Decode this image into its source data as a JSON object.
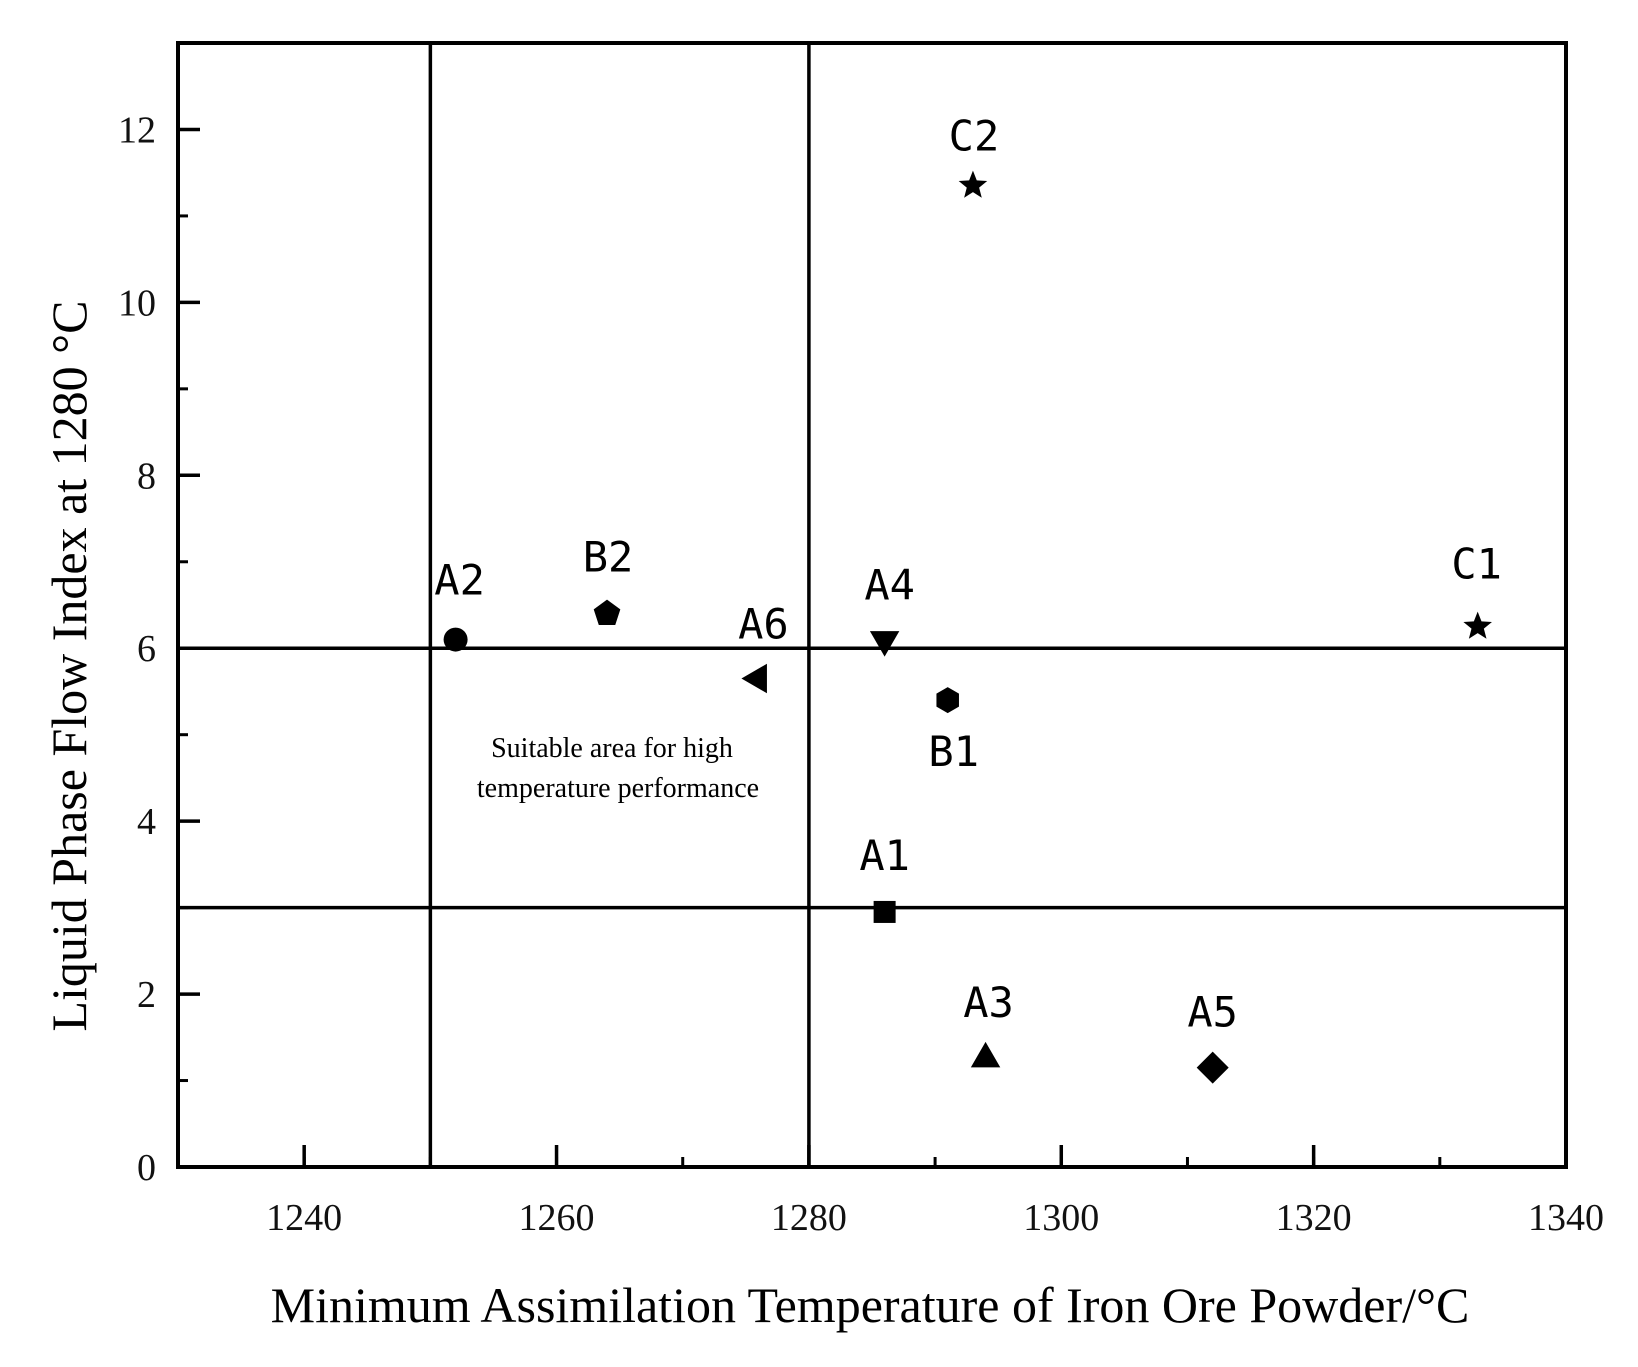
{
  "chart_data": {
    "type": "scatter",
    "xlabel": "Minimum Assimilation Temperature of Iron Ore Powder/°C",
    "ylabel": "Liquid Phase Flow Index at 1280 °C",
    "xlim": [
      1230,
      1340
    ],
    "ylim": [
      0,
      13
    ],
    "xticks": [
      1240,
      1260,
      1280,
      1300,
      1320,
      1340
    ],
    "yticks": [
      0,
      2,
      4,
      6,
      8,
      10,
      12
    ],
    "grid": false,
    "reference_lines": {
      "vertical": [
        1250,
        1280
      ],
      "horizontal": [
        6,
        3
      ]
    },
    "annotation": [
      "Suitable area for high",
      "temperature performance"
    ],
    "points": [
      {
        "label": "A1",
        "x": 1286,
        "y": 2.95,
        "marker": "square"
      },
      {
        "label": "A2",
        "x": 1252,
        "y": 6.1,
        "marker": "circle"
      },
      {
        "label": "A3",
        "x": 1294,
        "y": 1.25,
        "marker": "triangle-up"
      },
      {
        "label": "A4",
        "x": 1286,
        "y": 6.1,
        "marker": "triangle-down"
      },
      {
        "label": "A5",
        "x": 1312,
        "y": 1.15,
        "marker": "diamond"
      },
      {
        "label": "A6",
        "x": 1276,
        "y": 5.65,
        "marker": "triangle-left"
      },
      {
        "label": "B1",
        "x": 1291,
        "y": 5.4,
        "marker": "hexagon"
      },
      {
        "label": "B2",
        "x": 1264,
        "y": 6.4,
        "marker": "pentagon"
      },
      {
        "label": "C1",
        "x": 1333,
        "y": 6.25,
        "marker": "star"
      },
      {
        "label": "C2",
        "x": 1293,
        "y": 11.35,
        "marker": "star"
      }
    ]
  },
  "colors": {
    "ink": "#000000",
    "background": "#ffffff"
  }
}
